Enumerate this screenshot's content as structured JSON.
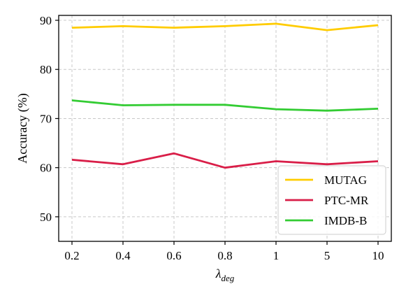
{
  "chart_data": {
    "type": "line",
    "title": "",
    "xlabel_base": "λ",
    "xlabel_sub": "deg",
    "ylabel": "Accuracy (%)",
    "categories": [
      "0.2",
      "0.4",
      "0.6",
      "0.8",
      "1",
      "5",
      "10"
    ],
    "ylim": [
      45,
      91
    ],
    "yticks": [
      50,
      60,
      70,
      80,
      90
    ],
    "grid": true,
    "legend_position": "lower-right",
    "series": [
      {
        "name": "MUTAG",
        "color": "#FFCC00",
        "values": [
          88.5,
          88.8,
          88.5,
          88.8,
          89.3,
          88.0,
          89.0
        ]
      },
      {
        "name": "PTC-MR",
        "color": "#D91E48",
        "values": [
          61.6,
          60.7,
          62.9,
          60.0,
          61.3,
          60.7,
          61.3
        ]
      },
      {
        "name": "IMDB-B",
        "color": "#33CC33",
        "values": [
          73.7,
          72.7,
          72.8,
          72.8,
          71.9,
          71.6,
          72.0
        ]
      }
    ]
  }
}
